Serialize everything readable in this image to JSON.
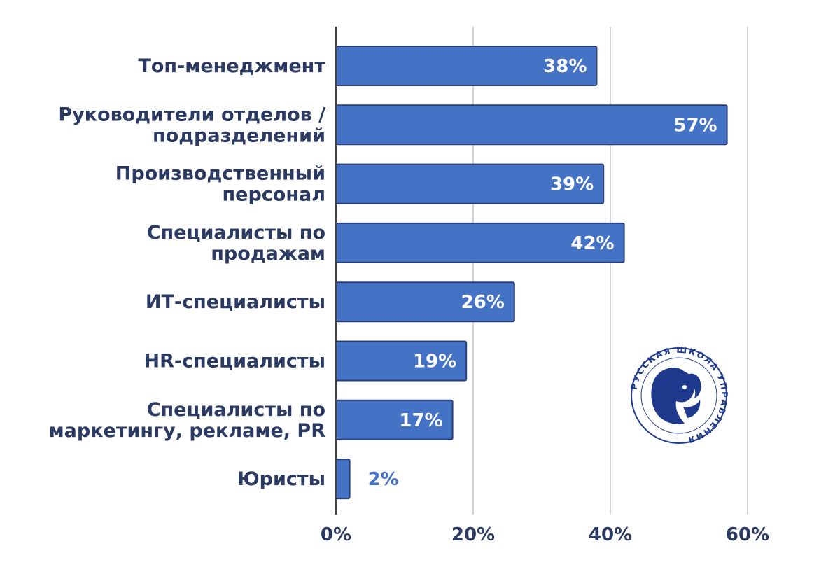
{
  "chart_data": {
    "type": "bar",
    "orientation": "horizontal",
    "categories": [
      [
        "Топ-менеджмент"
      ],
      [
        "Руководители отделов /",
        "подразделений"
      ],
      [
        "Производственный",
        "персонал"
      ],
      [
        "Специалисты по",
        "продажам"
      ],
      [
        "ИТ-специалисты"
      ],
      [
        "HR-специалисты"
      ],
      [
        "Специалисты по",
        "маркетингу, рекламе, PR"
      ],
      [
        "Юристы"
      ]
    ],
    "values": [
      38,
      57,
      39,
      42,
      26,
      19,
      17,
      2
    ],
    "data_labels": [
      "38%",
      "57%",
      "39%",
      "42%",
      "26%",
      "19%",
      "17%",
      "2%"
    ],
    "xlim": [
      0,
      60
    ],
    "xticks": [
      0,
      20,
      40,
      60
    ],
    "xtick_labels": [
      "0%",
      "20%",
      "40%",
      "60%"
    ],
    "grid": true,
    "colors": {
      "bar": "#4472c4",
      "bar_border": "#2a3f7a",
      "label_inside": "#ffffff",
      "label_outside": "#4472c4",
      "text": "#2b3a63",
      "grid": "#d3d3d3"
    }
  },
  "logo": {
    "icon": "lion-head-icon",
    "text": "РУССКАЯ ШКОЛА УПРАВЛЕНИЯ"
  }
}
